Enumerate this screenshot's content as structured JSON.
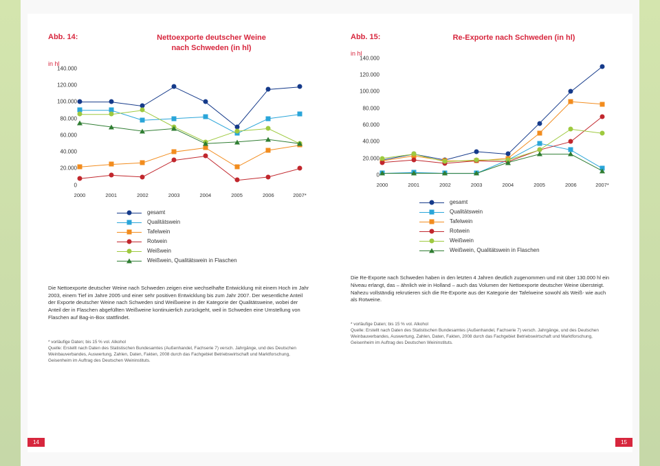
{
  "left": {
    "abb_label": "Abb. 14:",
    "title": "Nettoexporte deutscher Weine\nnach Schweden (in hl)",
    "y_unit": "in hl",
    "pagenum": "14",
    "body": "Die Nettoexporte deutscher Weine nach Schweden zeigen eine wechselhafte Entwicklung mit einem Hoch im Jahr 2003, einem Tief im Jahre 2005 und einer sehr positiven Entwicklung bis zum Jahr 2007. Der wesentliche Anteil der Exporte deutscher Weine nach Schweden sind Weißweine in der Kategorie der Qualitätsweine, wobei der Anteil der in Flaschen abgefüllten Weißweine kontinuierlich zurückgeht, weil in Schweden eine Umstellung von Flaschen auf Bag-in-Box stattfindet.",
    "footnote": "*  vorläufige Daten; bis 15 % vol. Alkohol\nQuelle: Erstellt nach Daten des Statistischen Bundesamtes (Außenhandel, Fachserie 7) versch. Jahrgänge, und des Deutschen Weinbauverbandes, Auswertung, Zahlen, Daten, Fakten, 2008 durch das Fachgebiet Betriebswirtschaft und Marktforschung, Geisenheim im Auftrag des Deutschen Weininstituts."
  },
  "right": {
    "abb_label": "Abb. 15:",
    "title": "Re-Exporte nach Schweden (in hl)",
    "y_unit": "in hl",
    "pagenum": "15",
    "body": "Die Re-Exporte nach Schweden haben in den letzten 4 Jahren deutlich zugenommen und mit über 130.000 hl ein Niveau erlangt, das – ähnlich wie in Holland – auch das Volumen der Nettoexporte deutscher Weine übersteigt. Nahezu vollständig rekrutieren sich die Re-Exporte aus der Kategorie der Tafelweine sowohl als Weiß- wie auch als Rotweine.",
    "footnote": "*  vorläufige Daten; bis 15 % vol. Alkohol\nQuelle: Erstellt nach Daten des Statistischen Bundesamtes (Außenhandel, Fachserie 7) versch. Jahrgänge, und des Deutschen Weinbauverbandes, Auswertung, Zahlen, Daten, Fakten, 2008 durch das Fachgebiet Betriebswirtschaft und Marktforschung, Geisenheim im Auftrag des Deutschen Weininstituts."
  },
  "axis": {
    "ylim": [
      0,
      140000
    ],
    "yticks": [
      "0",
      "20.000",
      "40.000",
      "60.000",
      "80.000",
      "100.000",
      "120.000",
      "140.000"
    ],
    "xcats": [
      "2000",
      "2001",
      "2002",
      "2003",
      "2004",
      "2005",
      "2006",
      "2007*"
    ]
  },
  "legend_items": [
    {
      "label": "gesamt",
      "color": "#153a8a",
      "marker": "circle"
    },
    {
      "label": "Qualitätswein",
      "color": "#2aa5d9",
      "marker": "square"
    },
    {
      "label": "Tafelwein",
      "color": "#f28c1e",
      "marker": "square"
    },
    {
      "label": "Rotwein",
      "color": "#c1272d",
      "marker": "circle"
    },
    {
      "label": "Weißwein",
      "color": "#9ec93f",
      "marker": "circle"
    },
    {
      "label": "Weißwein, Qualitätswein in Flaschen",
      "color": "#2f7d32",
      "marker": "triangle"
    }
  ],
  "series_left": {
    "gesamt": [
      100000,
      100000,
      95000,
      118000,
      100000,
      70000,
      115000,
      118000
    ],
    "qualitaetswein": [
      90000,
      90000,
      78000,
      80000,
      82000,
      62000,
      80000,
      85000
    ],
    "tafelwein": [
      22000,
      25000,
      27000,
      40000,
      45000,
      22000,
      42000,
      48000
    ],
    "rotwein": [
      8000,
      12000,
      10000,
      30000,
      35000,
      6000,
      10000,
      20000
    ],
    "weisswein": [
      85000,
      85000,
      90000,
      70000,
      52000,
      65000,
      68000,
      50000
    ],
    "weisswein_qw_flaschen": [
      75000,
      70000,
      65000,
      68000,
      50000,
      52000,
      55000,
      50000
    ]
  },
  "series_right": {
    "gesamt": [
      18000,
      25000,
      18000,
      28000,
      25000,
      62000,
      100000,
      130000
    ],
    "qualitaetswein": [
      2000,
      3000,
      2000,
      2000,
      18000,
      38000,
      30000,
      8000
    ],
    "tafelwein": [
      17000,
      23000,
      17000,
      17000,
      20000,
      50000,
      88000,
      85000
    ],
    "rotwein": [
      15000,
      18000,
      14000,
      17000,
      16000,
      30000,
      40000,
      70000
    ],
    "weisswein": [
      20000,
      25000,
      16000,
      18000,
      18000,
      30000,
      55000,
      50000
    ],
    "weisswein_qw_flaschen": [
      2000,
      2000,
      2000,
      2000,
      15000,
      25000,
      25000,
      5000
    ]
  },
  "colors": {
    "gesamt": "#153a8a",
    "qualitaetswein": "#2aa5d9",
    "tafelwein": "#f28c1e",
    "rotwein": "#c1272d",
    "weisswein": "#9ec93f",
    "weisswein_qw_flaschen": "#2f7d32",
    "axis": "#333333",
    "page_bg": "#ffffff"
  },
  "markers": {
    "gesamt": "circle",
    "qualitaetswein": "square",
    "tafelwein": "square",
    "rotwein": "circle",
    "weisswein": "circle",
    "weisswein_qw_flaschen": "triangle"
  }
}
